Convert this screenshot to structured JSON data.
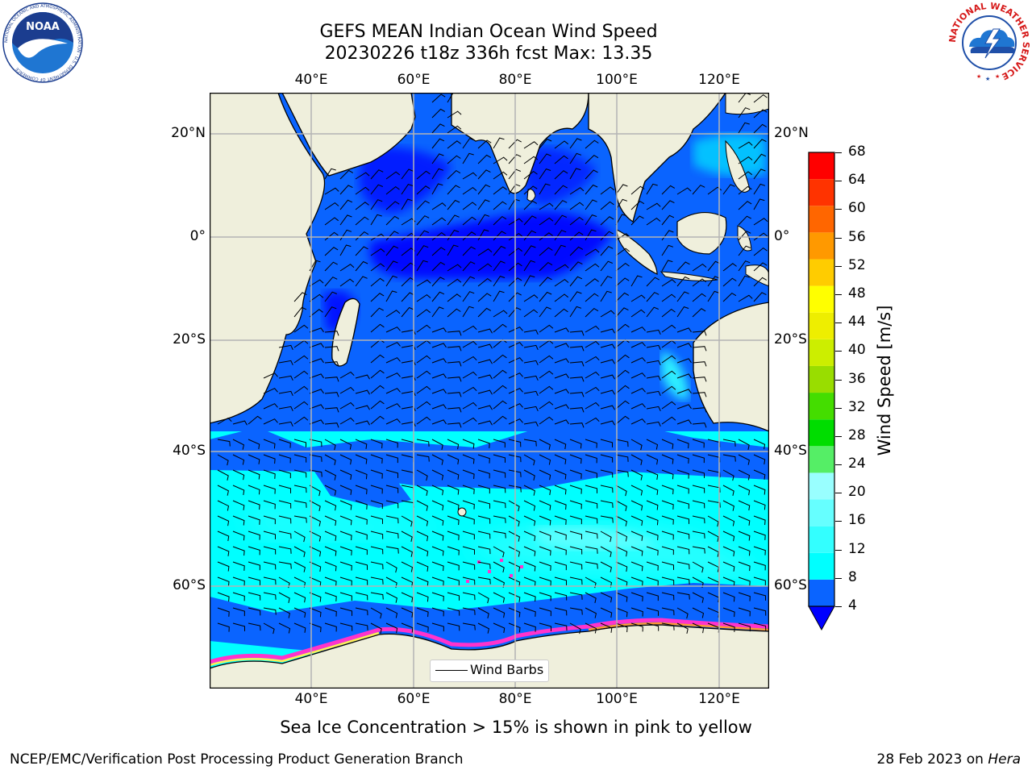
{
  "title": {
    "line1": "GEFS MEAN Indian Ocean Wind Speed",
    "line2": "20230226 t18z 336h fcst   Max: 13.35"
  },
  "map": {
    "lon_ticks_top": [
      "40°E",
      "60°E",
      "80°E",
      "100°E",
      "120°E"
    ],
    "lon_ticks_bottom": [
      "40°E",
      "60°E",
      "80°E",
      "100°E",
      "120°E"
    ],
    "lat_ticks_left": [
      "20°N",
      "0°",
      "20°S",
      "40°S",
      "60°S"
    ],
    "lat_ticks_right": [
      "20°N",
      "0°",
      "20°S",
      "40°S",
      "60°S"
    ],
    "lon_range": [
      "20°E",
      "130°E"
    ],
    "lat_range": [
      "70°S",
      "28°N"
    ],
    "gridlines": true,
    "land_color": "#efefdc",
    "sea_ice_colors": [
      "#ff33cc",
      "#ff9933",
      "#ffee55"
    ]
  },
  "colorbar": {
    "label": "Wind Speed [m/s]",
    "ticks": [
      "4",
      "8",
      "12",
      "16",
      "20",
      "24",
      "28",
      "32",
      "36",
      "40",
      "44",
      "48",
      "52",
      "56",
      "60",
      "64",
      "68"
    ],
    "under_color": "#0000ff",
    "band_colors": [
      "#0a64ff",
      "#00ffff",
      "#33ffff",
      "#66ffff",
      "#99ffff",
      "#55ee66",
      "#00dd00",
      "#44dd00",
      "#99dd00",
      "#ccee00",
      "#eeee00",
      "#ffff00",
      "#ffcc00",
      "#ff9900",
      "#ff6600",
      "#ff3300",
      "#ff0000"
    ]
  },
  "legend": {
    "label": "Wind Barbs"
  },
  "caption": "Sea Ice Concentration > 15% is shown in pink to yellow",
  "credit_left": "NCEP/EMC/Verification Post Processing Product Generation Branch",
  "credit_right_date": "28 Feb 2023 on",
  "credit_right_host": "Hera",
  "logos": {
    "noaa_text": "NOAA",
    "noaa_ring": "NATIONAL OCEANIC AND ATMOSPHERIC ADMINISTRATION · U.S. DEPARTMENT OF COMMERCE",
    "nws_ring": "NATIONAL WEATHER SERVICE"
  }
}
